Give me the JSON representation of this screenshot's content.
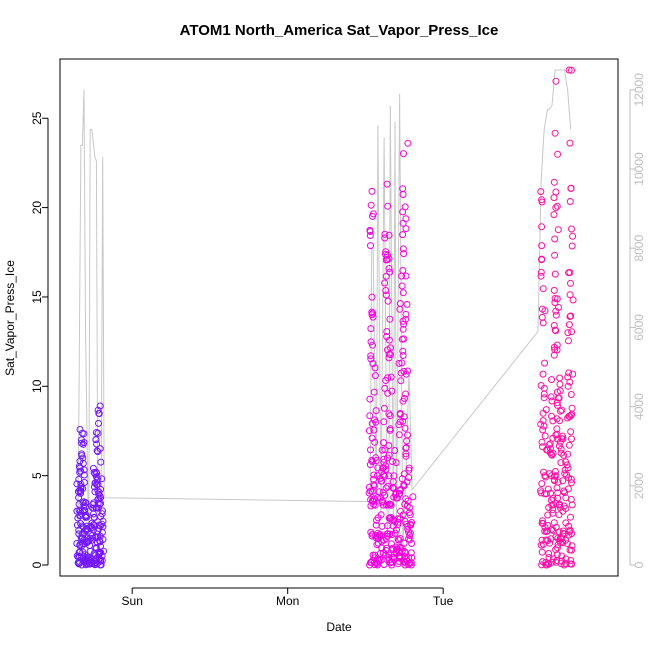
{
  "chart_data": {
    "type": "scatter",
    "title": "ATOM1 North_America Sat_Vapor_Press_Ice",
    "xlabel": "Date",
    "ylabel": "Sat_Vapor_Press_Ice",
    "x_unit": "days",
    "xlim": [
      0,
      3.46
    ],
    "ylim": [
      0,
      27.7
    ],
    "y_ticks": [
      0,
      5,
      10,
      15,
      20,
      25
    ],
    "x_ticks": [
      {
        "value": 0.4,
        "label": "Sun"
      },
      {
        "value": 1.4,
        "label": "Mon"
      },
      {
        "value": 2.4,
        "label": "Tue"
      }
    ],
    "y2_ticks": [
      0,
      2000,
      4000,
      6000,
      8000,
      10000,
      12000
    ],
    "y2lim": [
      0,
      12500
    ],
    "grid": false,
    "colors": {
      "points_start": "#6a1aff",
      "points_mid": "#ee00ee",
      "points_end": "#ff1493",
      "line": "#c8c8c8"
    },
    "bursts": [
      {
        "x_start": 0.05,
        "x_end": 0.21,
        "peak": 8.9
      },
      {
        "x_start": 1.93,
        "x_end": 2.2,
        "peak": 23.6
      },
      {
        "x_start": 3.03,
        "x_end": 3.23,
        "peak": 27.7
      }
    ],
    "secondary_series": {
      "description_unit": "altitude",
      "x": [
        0.05,
        0.07,
        0.08,
        0.09,
        0.1,
        0.12,
        0.13,
        0.14,
        0.16,
        0.17,
        0.18,
        0.2,
        0.21,
        0.22,
        1.93,
        1.94,
        1.95,
        1.97,
        1.98,
        2.0,
        2.02,
        2.04,
        2.05,
        2.06,
        2.08,
        2.09,
        2.1,
        2.12,
        2.14,
        2.16,
        2.18,
        2.2,
        3.01,
        3.03,
        3.05,
        3.07,
        3.08,
        3.1,
        3.12,
        3.14,
        3.16,
        3.18,
        3.2,
        3.22
      ],
      "y": [
        300,
        10600,
        10600,
        12000,
        6000,
        300,
        11000,
        11000,
        10300,
        10200,
        300,
        1000,
        10300,
        1700,
        1600,
        8000,
        8000,
        1500,
        11100,
        1200,
        10800,
        700,
        1300,
        11600,
        800,
        11200,
        300,
        11900,
        400,
        2200,
        4900,
        1900,
        5900,
        9700,
        11000,
        11500,
        11500,
        11600,
        12500,
        12500,
        12500,
        12500,
        12000,
        11000
      ]
    }
  }
}
